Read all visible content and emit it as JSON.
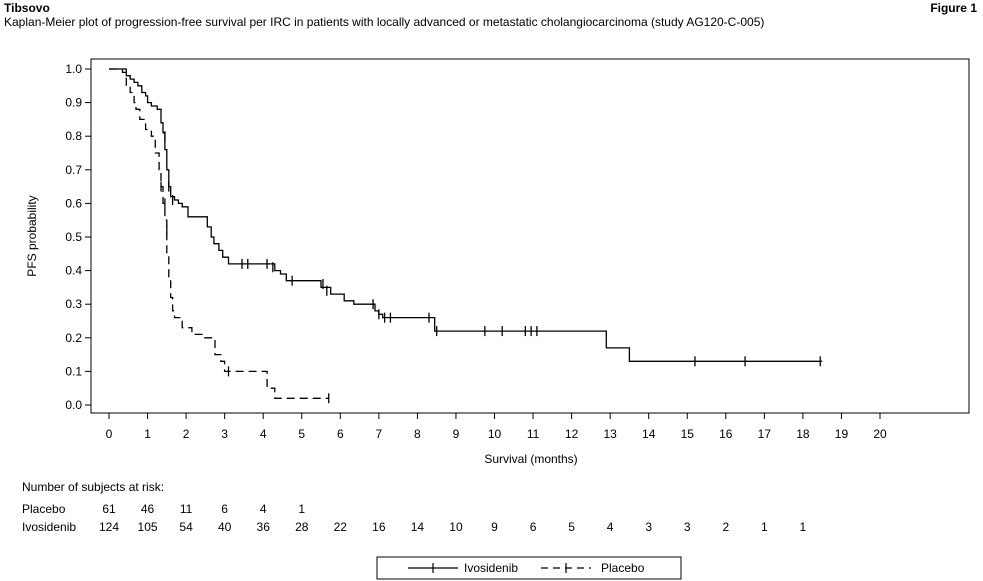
{
  "header": {
    "brand": "Tibsovo",
    "figure_label": "Figure 1",
    "title": "Kaplan-Meier plot of progression-free survival per IRC in patients with locally advanced or metastatic cholangiocarcinoma (study AG120-C-005)"
  },
  "chart_data": {
    "type": "line",
    "subtype": "kaplan-meier step",
    "xlabel": "Survival (months)",
    "ylabel": "PFS probability",
    "xlim": [
      0,
      20
    ],
    "ylim": [
      0,
      1
    ],
    "x_ticks": [
      0,
      1,
      2,
      3,
      4,
      5,
      6,
      7,
      8,
      9,
      10,
      11,
      12,
      13,
      14,
      15,
      16,
      17,
      18,
      19,
      20
    ],
    "y_ticks": [
      0.0,
      0.1,
      0.2,
      0.3,
      0.4,
      0.5,
      0.6,
      0.7,
      0.8,
      0.9,
      1.0
    ],
    "y_tick_labels": [
      "0.0",
      "0.1",
      "0.2",
      "0.3",
      "0.4",
      "0.5",
      "0.6",
      "0.7",
      "0.8",
      "0.9",
      "1.0"
    ],
    "grid": false,
    "legend_position": "bottom-center",
    "series": [
      {
        "name": "Ivosidenib",
        "line_style": "solid",
        "points": [
          [
            0,
            1.0
          ],
          [
            0.35,
            1.0
          ],
          [
            0.35,
            0.99
          ],
          [
            0.45,
            0.99
          ],
          [
            0.45,
            0.98
          ],
          [
            0.55,
            0.98
          ],
          [
            0.55,
            0.97
          ],
          [
            0.65,
            0.97
          ],
          [
            0.65,
            0.96
          ],
          [
            0.75,
            0.96
          ],
          [
            0.75,
            0.95
          ],
          [
            0.85,
            0.95
          ],
          [
            0.85,
            0.93
          ],
          [
            0.95,
            0.93
          ],
          [
            0.95,
            0.92
          ],
          [
            1.0,
            0.92
          ],
          [
            1.0,
            0.9
          ],
          [
            1.1,
            0.9
          ],
          [
            1.1,
            0.89
          ],
          [
            1.25,
            0.89
          ],
          [
            1.25,
            0.88
          ],
          [
            1.35,
            0.88
          ],
          [
            1.35,
            0.84
          ],
          [
            1.4,
            0.84
          ],
          [
            1.4,
            0.81
          ],
          [
            1.45,
            0.81
          ],
          [
            1.45,
            0.76
          ],
          [
            1.5,
            0.76
          ],
          [
            1.5,
            0.7
          ],
          [
            1.55,
            0.7
          ],
          [
            1.55,
            0.65
          ],
          [
            1.6,
            0.65
          ],
          [
            1.6,
            0.62
          ],
          [
            1.7,
            0.62
          ],
          [
            1.7,
            0.61
          ],
          [
            1.8,
            0.61
          ],
          [
            1.8,
            0.6
          ],
          [
            1.9,
            0.6
          ],
          [
            1.9,
            0.59
          ],
          [
            2.05,
            0.59
          ],
          [
            2.05,
            0.56
          ],
          [
            2.55,
            0.56
          ],
          [
            2.55,
            0.53
          ],
          [
            2.65,
            0.53
          ],
          [
            2.65,
            0.5
          ],
          [
            2.72,
            0.5
          ],
          [
            2.72,
            0.48
          ],
          [
            2.85,
            0.48
          ],
          [
            2.85,
            0.46
          ],
          [
            2.95,
            0.46
          ],
          [
            2.95,
            0.44
          ],
          [
            3.1,
            0.44
          ],
          [
            3.1,
            0.42
          ],
          [
            4.3,
            0.42
          ],
          [
            4.3,
            0.4
          ],
          [
            4.45,
            0.4
          ],
          [
            4.45,
            0.39
          ],
          [
            4.6,
            0.39
          ],
          [
            4.6,
            0.37
          ],
          [
            5.5,
            0.37
          ],
          [
            5.5,
            0.35
          ],
          [
            5.75,
            0.35
          ],
          [
            5.75,
            0.33
          ],
          [
            6.1,
            0.33
          ],
          [
            6.1,
            0.31
          ],
          [
            6.35,
            0.31
          ],
          [
            6.35,
            0.3
          ],
          [
            6.9,
            0.3
          ],
          [
            6.9,
            0.28
          ],
          [
            7.0,
            0.28
          ],
          [
            7.0,
            0.27
          ],
          [
            7.1,
            0.27
          ],
          [
            7.1,
            0.26
          ],
          [
            8.45,
            0.26
          ],
          [
            8.45,
            0.22
          ],
          [
            12.9,
            0.22
          ],
          [
            12.9,
            0.17
          ],
          [
            13.5,
            0.17
          ],
          [
            13.5,
            0.13
          ],
          [
            18.5,
            0.13
          ]
        ],
        "censored": [
          [
            1.45,
            0.8
          ],
          [
            1.55,
            0.65
          ],
          [
            1.65,
            0.61
          ],
          [
            3.45,
            0.42
          ],
          [
            3.6,
            0.42
          ],
          [
            4.1,
            0.42
          ],
          [
            4.25,
            0.41
          ],
          [
            4.75,
            0.37
          ],
          [
            5.55,
            0.36
          ],
          [
            5.65,
            0.34
          ],
          [
            6.85,
            0.3
          ],
          [
            7.0,
            0.27
          ],
          [
            7.15,
            0.26
          ],
          [
            7.3,
            0.26
          ],
          [
            8.3,
            0.26
          ],
          [
            8.5,
            0.22
          ],
          [
            9.75,
            0.22
          ],
          [
            10.2,
            0.22
          ],
          [
            10.8,
            0.22
          ],
          [
            10.95,
            0.22
          ],
          [
            11.1,
            0.22
          ],
          [
            15.2,
            0.13
          ],
          [
            16.5,
            0.13
          ],
          [
            18.45,
            0.13
          ]
        ]
      },
      {
        "name": "Placebo",
        "line_style": "dashed",
        "points": [
          [
            0,
            1.0
          ],
          [
            0.45,
            1.0
          ],
          [
            0.45,
            0.95
          ],
          [
            0.55,
            0.95
          ],
          [
            0.55,
            0.93
          ],
          [
            0.65,
            0.93
          ],
          [
            0.65,
            0.9
          ],
          [
            0.7,
            0.9
          ],
          [
            0.7,
            0.88
          ],
          [
            0.8,
            0.88
          ],
          [
            0.8,
            0.85
          ],
          [
            0.95,
            0.85
          ],
          [
            0.95,
            0.82
          ],
          [
            1.1,
            0.82
          ],
          [
            1.1,
            0.8
          ],
          [
            1.2,
            0.8
          ],
          [
            1.2,
            0.75
          ],
          [
            1.3,
            0.75
          ],
          [
            1.3,
            0.7
          ],
          [
            1.35,
            0.7
          ],
          [
            1.35,
            0.65
          ],
          [
            1.4,
            0.65
          ],
          [
            1.4,
            0.6
          ],
          [
            1.45,
            0.6
          ],
          [
            1.45,
            0.55
          ],
          [
            1.5,
            0.55
          ],
          [
            1.5,
            0.45
          ],
          [
            1.55,
            0.45
          ],
          [
            1.55,
            0.38
          ],
          [
            1.6,
            0.38
          ],
          [
            1.6,
            0.32
          ],
          [
            1.65,
            0.32
          ],
          [
            1.65,
            0.28
          ],
          [
            1.7,
            0.28
          ],
          [
            1.7,
            0.26
          ],
          [
            1.9,
            0.26
          ],
          [
            1.9,
            0.23
          ],
          [
            2.15,
            0.23
          ],
          [
            2.15,
            0.21
          ],
          [
            2.45,
            0.21
          ],
          [
            2.45,
            0.2
          ],
          [
            2.75,
            0.2
          ],
          [
            2.75,
            0.15
          ],
          [
            2.9,
            0.15
          ],
          [
            2.9,
            0.13
          ],
          [
            3.0,
            0.13
          ],
          [
            3.0,
            0.1
          ],
          [
            4.1,
            0.1
          ],
          [
            4.1,
            0.05
          ],
          [
            4.3,
            0.05
          ],
          [
            4.3,
            0.02
          ],
          [
            5.7,
            0.02
          ]
        ],
        "censored": [
          [
            1.35,
            0.65
          ],
          [
            1.45,
            0.6
          ],
          [
            1.5,
            0.52
          ],
          [
            3.1,
            0.1
          ],
          [
            5.7,
            0.02
          ]
        ]
      }
    ],
    "risk_table": {
      "title": "Number of subjects at risk:",
      "rows": [
        {
          "label": "Placebo",
          "counts": [
            "61",
            "46",
            "11",
            "6",
            "4",
            "1"
          ]
        },
        {
          "label": "Ivosidenib",
          "counts": [
            "124",
            "105",
            "54",
            "40",
            "36",
            "28",
            "22",
            "16",
            "14",
            "10",
            "9",
            "6",
            "5",
            "4",
            "3",
            "3",
            "2",
            "1",
            "1"
          ]
        }
      ]
    },
    "legend": [
      {
        "label": "Ivosidenib",
        "line_style": "solid"
      },
      {
        "label": "Placebo",
        "line_style": "dashed"
      }
    ]
  }
}
